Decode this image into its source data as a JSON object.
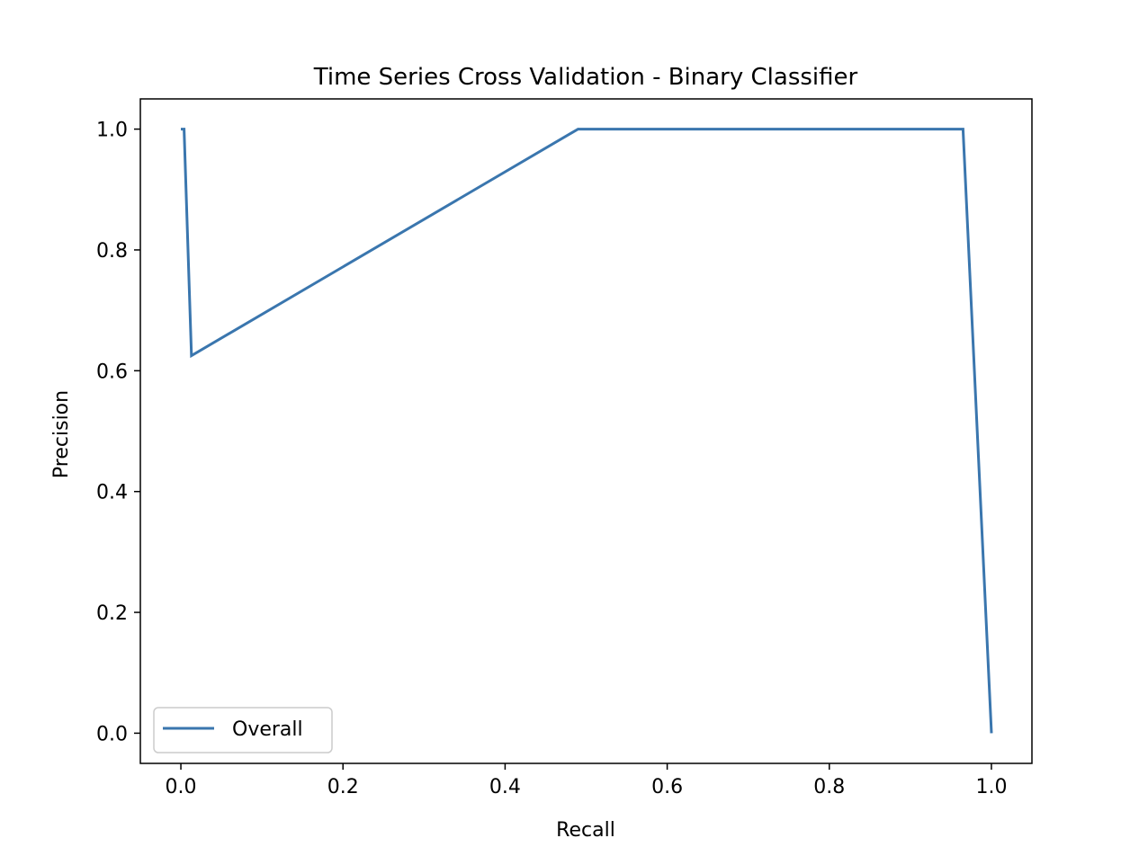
{
  "chart_data": {
    "type": "line",
    "title": "Time Series Cross Validation - Binary Classifier",
    "xlabel": "Recall",
    "ylabel": "Precision",
    "xlim": [
      -0.05,
      1.05
    ],
    "ylim": [
      -0.05,
      1.05
    ],
    "xticks": [
      0.0,
      0.2,
      0.4,
      0.6,
      0.8,
      1.0
    ],
    "xtick_labels": [
      "0.0",
      "0.2",
      "0.4",
      "0.6",
      "0.8",
      "1.0"
    ],
    "yticks": [
      0.0,
      0.2,
      0.4,
      0.6,
      0.8,
      1.0
    ],
    "ytick_labels": [
      "0.0",
      "0.2",
      "0.4",
      "0.6",
      "0.8",
      "1.0"
    ],
    "grid": false,
    "legend": "lower-left",
    "series": [
      {
        "name": "Overall",
        "color": "#3a76ae",
        "x": [
          0.0,
          0.004,
          0.013,
          0.49,
          0.965,
          1.0
        ],
        "y": [
          1.0,
          1.0,
          0.625,
          1.0,
          1.0,
          0.0
        ]
      }
    ]
  }
}
